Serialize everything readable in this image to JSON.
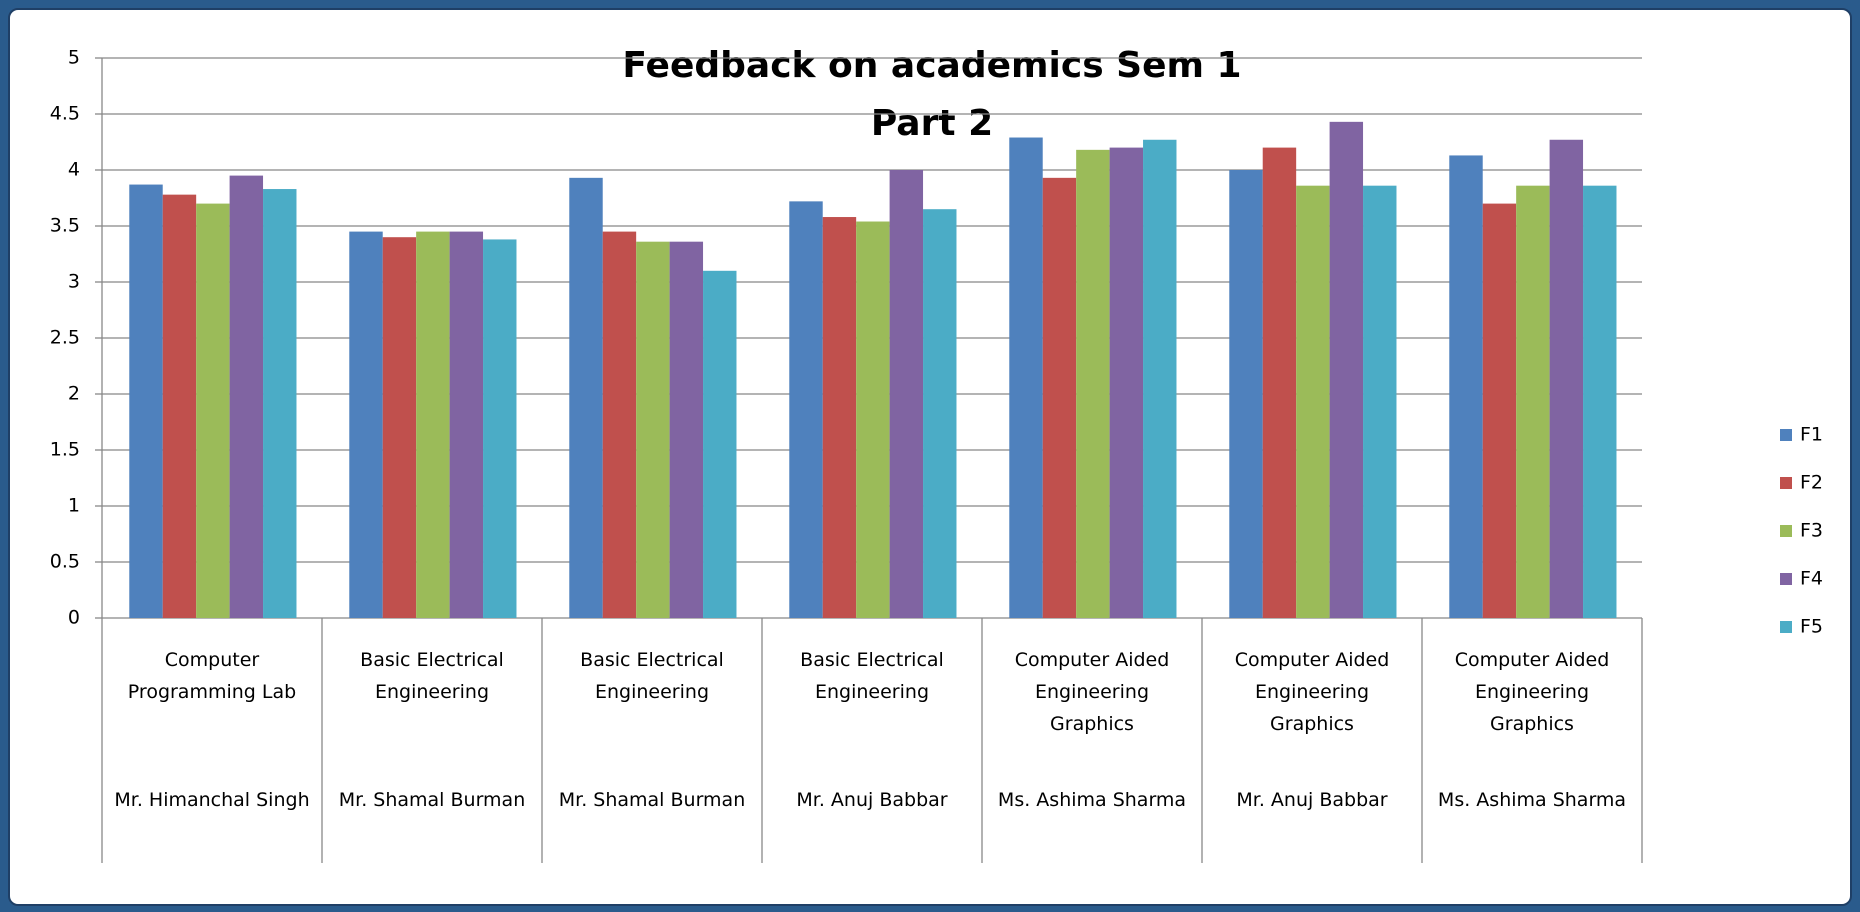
{
  "chart_data": {
    "type": "bar",
    "title": "Feedback on academics Sem 1",
    "subtitle": "Part 2",
    "categories": [
      "Computer Programming Lab",
      "Basic Electrical Engineering",
      "Basic Electrical Engineering",
      "Basic Electrical Engineering",
      "Computer Aided Engineering Graphics",
      "Computer Aided Engineering Graphics",
      "Computer Aided Engineering Graphics"
    ],
    "teachers": [
      "Mr. Himanchal Singh",
      "Mr. Shamal  Burman",
      "Mr. Shamal  Burman",
      "Mr. Anuj Babbar",
      "Ms. Ashima Sharma",
      "Mr. Anuj Babbar",
      "Ms. Ashima Sharma"
    ],
    "series": [
      {
        "name": "F1",
        "color": "#4f81bd",
        "values": [
          3.87,
          3.45,
          3.93,
          3.72,
          4.29,
          4.0,
          4.13
        ]
      },
      {
        "name": "F2",
        "color": "#c0504d",
        "values": [
          3.78,
          3.4,
          3.45,
          3.58,
          3.93,
          4.2,
          3.7
        ]
      },
      {
        "name": "F3",
        "color": "#9bbb59",
        "values": [
          3.7,
          3.45,
          3.36,
          3.54,
          4.18,
          3.86,
          3.86
        ]
      },
      {
        "name": "F4",
        "color": "#8064a2",
        "values": [
          3.95,
          3.45,
          3.36,
          4.0,
          4.2,
          4.43,
          4.27
        ]
      },
      {
        "name": "F5",
        "color": "#4bacc6",
        "values": [
          3.83,
          3.38,
          3.1,
          3.65,
          4.27,
          3.86,
          3.86
        ]
      }
    ],
    "ylim": [
      0,
      5
    ],
    "yticks": [
      0,
      0.5,
      1,
      1.5,
      2,
      2.5,
      3,
      3.5,
      4,
      4.5,
      5
    ],
    "grid": true,
    "legend": "right"
  }
}
